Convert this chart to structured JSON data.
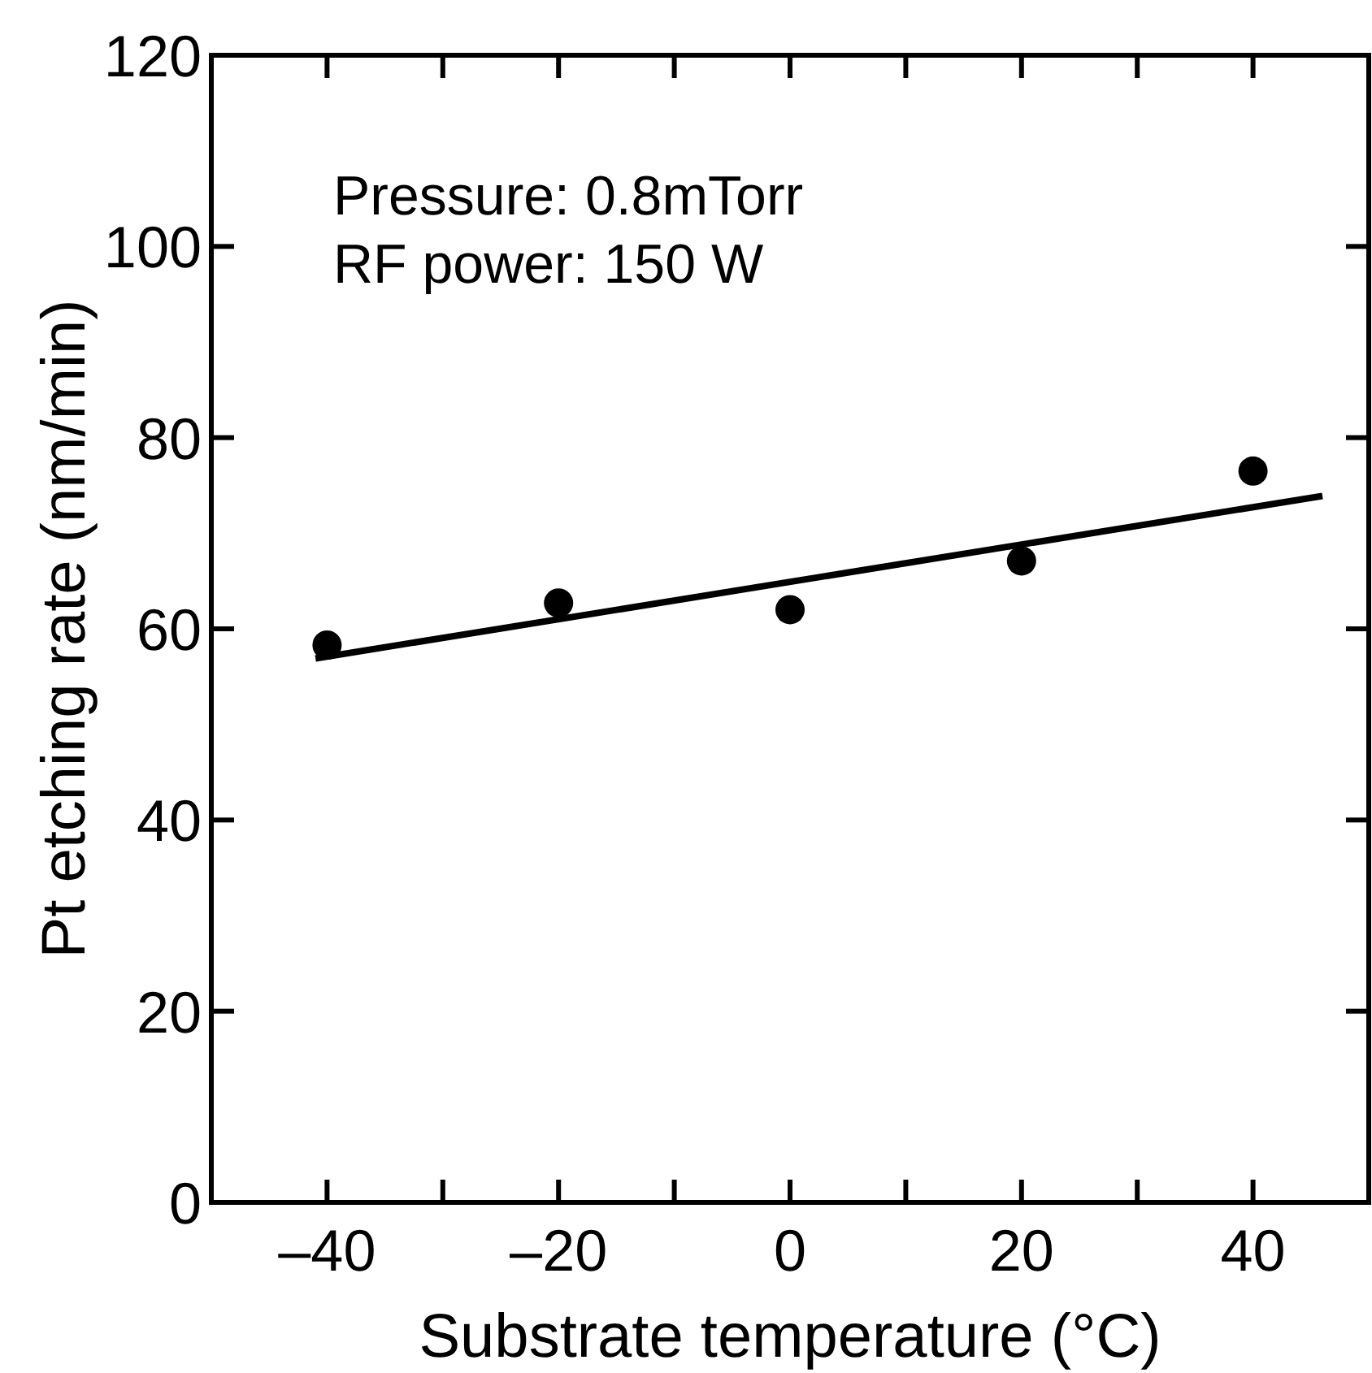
{
  "chart_data": {
    "type": "scatter",
    "xlabel": "Substrate temperature (°C)",
    "ylabel": "Pt etching rate (nm/min)",
    "annotations": [
      "Pressure: 0.8mTorr",
      "RF power: 150 W"
    ],
    "xlim": [
      -50,
      50
    ],
    "ylim": [
      0,
      120
    ],
    "xticks": [
      {
        "value": -40,
        "label": "–40"
      },
      {
        "value": -30,
        "label": null
      },
      {
        "value": -20,
        "label": "–20"
      },
      {
        "value": -10,
        "label": null
      },
      0,
      {
        "value": 10,
        "label": null
      },
      20,
      {
        "value": 30,
        "label": null
      },
      40
    ],
    "yticks": [
      0,
      20,
      40,
      60,
      80,
      100,
      120
    ],
    "grid": false,
    "series": [
      {
        "color": "#000000",
        "marker": "circle",
        "x": [
          -40,
          -20,
          0,
          20,
          40
        ],
        "values": [
          58.3,
          62.7,
          62,
          67.1,
          76.5
        ]
      },
      {
        "type": "line",
        "color": "#000000",
        "line_style": "solid",
        "x": [
          -41,
          46
        ],
        "values": [
          56.9,
          73.9
        ]
      }
    ]
  }
}
